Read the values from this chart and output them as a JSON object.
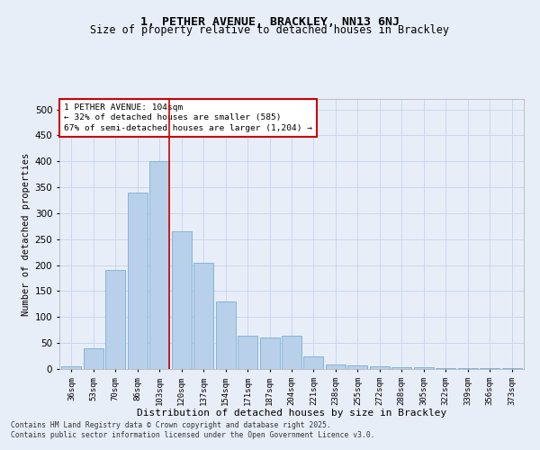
{
  "title_line1": "1, PETHER AVENUE, BRACKLEY, NN13 6NJ",
  "title_line2": "Size of property relative to detached houses in Brackley",
  "xlabel": "Distribution of detached houses by size in Brackley",
  "ylabel": "Number of detached properties",
  "categories": [
    "36sqm",
    "53sqm",
    "70sqm",
    "86sqm",
    "103sqm",
    "120sqm",
    "137sqm",
    "154sqm",
    "171sqm",
    "187sqm",
    "204sqm",
    "221sqm",
    "238sqm",
    "255sqm",
    "272sqm",
    "288sqm",
    "305sqm",
    "322sqm",
    "339sqm",
    "356sqm",
    "373sqm"
  ],
  "values": [
    5,
    40,
    190,
    340,
    400,
    265,
    205,
    130,
    65,
    60,
    65,
    25,
    8,
    7,
    5,
    3,
    3,
    2,
    1,
    1,
    2
  ],
  "bar_color": "#b8d0ea",
  "bar_edge_color": "#7aaed6",
  "grid_color": "#c8d8ec",
  "background_color": "#e8eef8",
  "vline_x_index": 4,
  "vline_color": "#cc0000",
  "annotation_text": "1 PETHER AVENUE: 104sqm\n← 32% of detached houses are smaller (585)\n67% of semi-detached houses are larger (1,204) →",
  "annotation_box_color": "#ffffff",
  "annotation_box_edge_color": "#cc0000",
  "footer_line1": "Contains HM Land Registry data © Crown copyright and database right 2025.",
  "footer_line2": "Contains public sector information licensed under the Open Government Licence v3.0.",
  "ylim": [
    0,
    520
  ],
  "yticks": [
    0,
    50,
    100,
    150,
    200,
    250,
    300,
    350,
    400,
    450,
    500
  ]
}
